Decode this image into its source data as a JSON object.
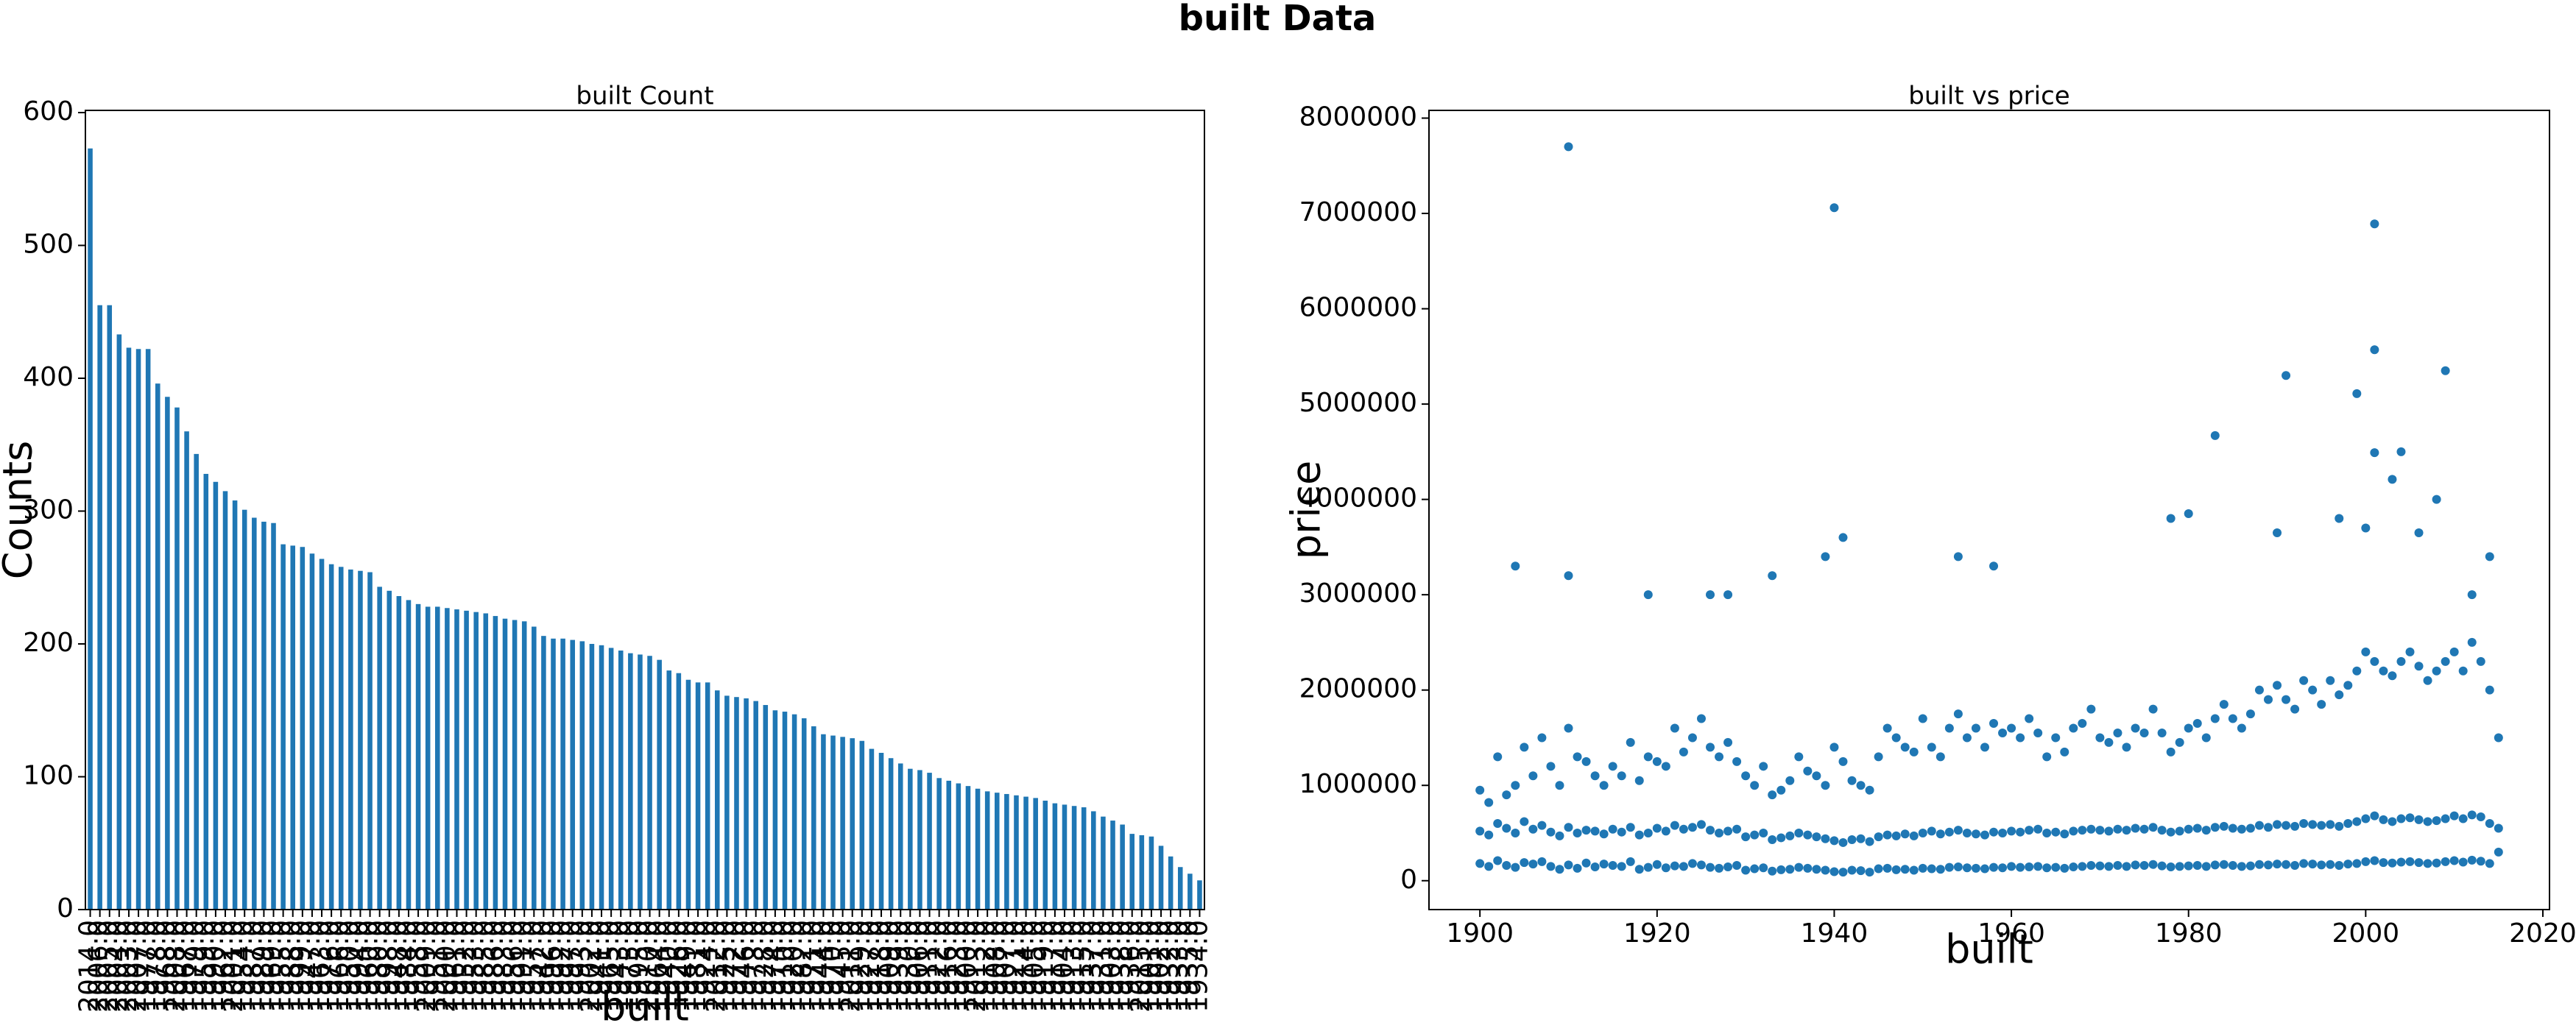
{
  "title": "built Data",
  "chart_data": [
    {
      "type": "bar",
      "title": "built Count",
      "xlabel": "built",
      "ylabel": "Counts",
      "color": "#1f77b4",
      "categories": [
        "2014.0",
        "2006.0",
        "2005.0",
        "2004.0",
        "2003.0",
        "2007.0",
        "1977.0",
        "1978.0",
        "1968.0",
        "2008.0",
        "1967.0",
        "1979.0",
        "1959.0",
        "1990.0",
        "1962.0",
        "2001.0",
        "1954.0",
        "1987.0",
        "1989.0",
        "1969.0",
        "1955.0",
        "1988.0",
        "1999.0",
        "1947.0",
        "1963.0",
        "1976.0",
        "1966.0",
        "1950.0",
        "1994.0",
        "1960.0",
        "1980.0",
        "1998.0",
        "1948.0",
        "1984.0",
        "1958.0",
        "2009.0",
        "1951.0",
        "2000.0",
        "1961.0",
        "1952.0",
        "1953.0",
        "1985.0",
        "1986.0",
        "1983.0",
        "1956.0",
        "1991.0",
        "1957.0",
        "1942.0",
        "1996.0",
        "1992.0",
        "1997.0",
        "1993.0",
        "2002.0",
        "1941.0",
        "1965.0",
        "1943.0",
        "1975.0",
        "1995.0",
        "2010.0",
        "1964.0",
        "1940.0",
        "1926.0",
        "1949.0",
        "1981.0",
        "1924.0",
        "2012.0",
        "1925.0",
        "1972.0",
        "1946.0",
        "1973.0",
        "1928.0",
        "1974.0",
        "1910.0",
        "1920.0",
        "1982.0",
        "1971.0",
        "1944.0",
        "1970.0",
        "1945.0",
        "2011.0",
        "1929.0",
        "1927.0",
        "1918.0",
        "1909.0",
        "1939.0",
        "1930.0",
        "1906.0",
        "1911.0",
        "1922.0",
        "1916.0",
        "1923.0",
        "1900.0",
        "2013.0",
        "1912.0",
        "1908.0",
        "1907.0",
        "1921.0",
        "1914.0",
        "1905.0",
        "1919.0",
        "1917.0",
        "1904.0",
        "1913.0",
        "1915.0",
        "1937.0",
        "1931.0",
        "1903.0",
        "1938.0",
        "1936.0",
        "2015.0",
        "1901.0",
        "1902.0",
        "1932.0",
        "1933.0",
        "1935.0",
        "1934.0"
      ],
      "values": [
        573,
        455,
        455,
        433,
        423,
        422,
        422,
        396,
        386,
        378,
        360,
        343,
        328,
        322,
        315,
        308,
        301,
        295,
        292,
        291,
        275,
        274,
        273,
        268,
        264,
        260,
        258,
        256,
        255,
        254,
        243,
        240,
        236,
        233,
        230,
        228,
        228,
        227,
        226,
        225,
        224,
        223,
        221,
        219,
        218,
        217,
        213,
        206,
        204,
        204,
        203,
        202,
        200,
        199,
        197,
        195,
        193,
        192,
        191,
        188,
        180,
        178,
        173,
        171,
        171,
        165,
        161,
        160,
        159,
        157,
        154,
        150,
        149,
        147,
        144,
        138,
        132,
        131,
        130,
        129,
        127,
        121,
        118,
        114,
        110,
        106,
        105,
        103,
        99,
        97,
        95,
        93,
        91,
        89,
        88,
        87,
        86,
        85,
        84,
        82,
        80,
        79,
        78,
        77,
        74,
        70,
        67,
        64,
        57,
        56,
        55,
        48,
        40,
        32,
        27,
        22
      ],
      "ylim": [
        0,
        601.65
      ],
      "yticks": [
        0,
        100,
        200,
        300,
        400,
        500,
        600
      ]
    },
    {
      "type": "scatter",
      "title": "built vs price",
      "xlabel": "built",
      "ylabel": "price",
      "color": "#1f77b4",
      "x": [
        1900,
        1901,
        1902,
        1903,
        1904,
        1905,
        1906,
        1907,
        1908,
        1909,
        1910,
        1911,
        1912,
        1913,
        1914,
        1915,
        1916,
        1917,
        1918,
        1919,
        1920,
        1921,
        1922,
        1923,
        1924,
        1925,
        1926,
        1927,
        1928,
        1929,
        1930,
        1931,
        1932,
        1933,
        1934,
        1935,
        1936,
        1937,
        1938,
        1939,
        1940,
        1941,
        1942,
        1943,
        1944,
        1945,
        1946,
        1947,
        1948,
        1949,
        1950,
        1951,
        1952,
        1953,
        1954,
        1955,
        1956,
        1957,
        1958,
        1959,
        1960,
        1961,
        1962,
        1963,
        1964,
        1965,
        1966,
        1967,
        1968,
        1969,
        1970,
        1971,
        1972,
        1973,
        1974,
        1975,
        1976,
        1977,
        1978,
        1979,
        1980,
        1981,
        1982,
        1983,
        1984,
        1985,
        1986,
        1987,
        1988,
        1989,
        1990,
        1991,
        1992,
        1993,
        1994,
        1995,
        1996,
        1997,
        1998,
        1999,
        2000,
        2001,
        2002,
        2003,
        2004,
        2005,
        2006,
        2007,
        2008,
        2009,
        2010,
        2011,
        2012,
        2013,
        2014,
        2015,
        1900,
        1901,
        1902,
        1903,
        1904,
        1905,
        1906,
        1907,
        1908,
        1909,
        1910,
        1911,
        1912,
        1913,
        1914,
        1915,
        1916,
        1917,
        1918,
        1919,
        1920,
        1921,
        1922,
        1923,
        1924,
        1925,
        1926,
        1927,
        1928,
        1929,
        1930,
        1931,
        1932,
        1933,
        1934,
        1935,
        1936,
        1937,
        1938,
        1939,
        1940,
        1941,
        1942,
        1943,
        1944,
        1945,
        1946,
        1947,
        1948,
        1949,
        1950,
        1951,
        1952,
        1953,
        1954,
        1955,
        1956,
        1957,
        1958,
        1959,
        1960,
        1961,
        1962,
        1963,
        1964,
        1965,
        1966,
        1967,
        1968,
        1969,
        1970,
        1971,
        1972,
        1973,
        1974,
        1975,
        1976,
        1977,
        1978,
        1979,
        1980,
        1981,
        1982,
        1983,
        1984,
        1985,
        1986,
        1987,
        1988,
        1989,
        1990,
        1991,
        1992,
        1993,
        1994,
        1995,
        1996,
        1997,
        1998,
        1999,
        2000,
        2001,
        2002,
        2003,
        2004,
        2005,
        2006,
        2007,
        2008,
        2009,
        2010,
        2011,
        2012,
        2013,
        2014,
        2015,
        1900,
        1901,
        1902,
        1903,
        1904,
        1905,
        1906,
        1907,
        1908,
        1909,
        1910,
        1911,
        1912,
        1913,
        1914,
        1915,
        1916,
        1917,
        1918,
        1919,
        1920,
        1921,
        1922,
        1923,
        1924,
        1925,
        1926,
        1927,
        1928,
        1929,
        1930,
        1931,
        1932,
        1933,
        1934,
        1935,
        1936,
        1937,
        1938,
        1939,
        1940,
        1941,
        1942,
        1943,
        1944,
        1945,
        1946,
        1947,
        1948,
        1949,
        1950,
        1951,
        1952,
        1953,
        1954,
        1955,
        1956,
        1957,
        1958,
        1959,
        1960,
        1961,
        1962,
        1963,
        1964,
        1965,
        1966,
        1967,
        1968,
        1969,
        1970,
        1971,
        1972,
        1973,
        1974,
        1975,
        1976,
        1977,
        1978,
        1979,
        1980,
        1981,
        1982,
        1983,
        1984,
        1985,
        1986,
        1987,
        1988,
        1989,
        1990,
        1991,
        1992,
        1993,
        1994,
        1995,
        1996,
        1997,
        1998,
        1999,
        2000,
        2001,
        2002,
        2003,
        2004,
        2005,
        2006,
        2007,
        2008,
        2009,
        2010,
        2011,
        2012,
        2013,
        2014,
        2015,
        1910,
        1940,
        2001,
        2001,
        1991,
        1999,
        2009,
        1983,
        2001,
        2004,
        2003,
        2008,
        1941,
        1939,
        1904,
        1910,
        1933,
        1919,
        1978,
        1980,
        1990,
        1997,
        2000,
        2006,
        2014,
        1954,
        1958,
        1926,
        1928,
        2012
      ],
      "values": [
        180000,
        150000,
        210000,
        160000,
        140000,
        190000,
        175000,
        200000,
        150000,
        120000,
        165000,
        130000,
        185000,
        145000,
        175000,
        160000,
        150000,
        200000,
        120000,
        140000,
        170000,
        135000,
        155000,
        150000,
        180000,
        165000,
        140000,
        130000,
        145000,
        160000,
        110000,
        125000,
        135000,
        100000,
        115000,
        120000,
        140000,
        130000,
        120000,
        110000,
        95000,
        90000,
        110000,
        105000,
        90000,
        125000,
        130000,
        115000,
        120000,
        110000,
        130000,
        125000,
        120000,
        140000,
        145000,
        135000,
        130000,
        125000,
        140000,
        135000,
        150000,
        140000,
        145000,
        150000,
        135000,
        140000,
        130000,
        145000,
        150000,
        160000,
        155000,
        150000,
        160000,
        150000,
        165000,
        160000,
        170000,
        155000,
        145000,
        150000,
        155000,
        160000,
        150000,
        165000,
        170000,
        160000,
        150000,
        155000,
        170000,
        165000,
        175000,
        170000,
        160000,
        180000,
        175000,
        165000,
        170000,
        160000,
        175000,
        180000,
        200000,
        210000,
        190000,
        185000,
        195000,
        200000,
        190000,
        180000,
        185000,
        200000,
        210000,
        195000,
        215000,
        205000,
        180000,
        300000,
        520000,
        480000,
        600000,
        550000,
        500000,
        620000,
        540000,
        580000,
        510000,
        470000,
        560000,
        500000,
        530000,
        520000,
        490000,
        540000,
        510000,
        560000,
        480000,
        500000,
        550000,
        520000,
        580000,
        540000,
        560000,
        590000,
        530000,
        500000,
        520000,
        540000,
        460000,
        480000,
        500000,
        430000,
        450000,
        470000,
        500000,
        480000,
        460000,
        440000,
        420000,
        400000,
        430000,
        440000,
        410000,
        460000,
        480000,
        470000,
        490000,
        470000,
        500000,
        520000,
        490000,
        510000,
        530000,
        500000,
        490000,
        480000,
        510000,
        500000,
        520000,
        510000,
        530000,
        540000,
        500000,
        510000,
        490000,
        520000,
        530000,
        540000,
        530000,
        520000,
        540000,
        530000,
        550000,
        540000,
        560000,
        530000,
        510000,
        520000,
        540000,
        550000,
        530000,
        560000,
        570000,
        550000,
        540000,
        550000,
        580000,
        560000,
        590000,
        580000,
        570000,
        600000,
        590000,
        580000,
        590000,
        570000,
        600000,
        620000,
        650000,
        680000,
        640000,
        620000,
        650000,
        660000,
        640000,
        620000,
        630000,
        650000,
        680000,
        650000,
        690000,
        670000,
        600000,
        550000,
        950000,
        820000,
        1300000,
        900000,
        1000000,
        1400000,
        1100000,
        1500000,
        1200000,
        1000000,
        1600000,
        1300000,
        1250000,
        1100000,
        1000000,
        1200000,
        1100000,
        1450000,
        1050000,
        1300000,
        1250000,
        1200000,
        1600000,
        1350000,
        1500000,
        1700000,
        1400000,
        1300000,
        1450000,
        1250000,
        1100000,
        1000000,
        1200000,
        900000,
        950000,
        1050000,
        1300000,
        1150000,
        1100000,
        1000000,
        1400000,
        1250000,
        1050000,
        1000000,
        950000,
        1300000,
        1600000,
        1500000,
        1400000,
        1350000,
        1700000,
        1400000,
        1300000,
        1600000,
        1750000,
        1500000,
        1600000,
        1400000,
        1650000,
        1550000,
        1600000,
        1500000,
        1700000,
        1550000,
        1300000,
        1500000,
        1350000,
        1600000,
        1650000,
        1800000,
        1500000,
        1450000,
        1550000,
        1400000,
        1600000,
        1550000,
        1800000,
        1550000,
        1350000,
        1450000,
        1600000,
        1650000,
        1500000,
        1700000,
        1850000,
        1700000,
        1600000,
        1750000,
        2000000,
        1900000,
        2050000,
        1900000,
        1800000,
        2100000,
        2000000,
        1850000,
        2100000,
        1950000,
        2050000,
        2200000,
        2400000,
        2300000,
        2200000,
        2150000,
        2300000,
        2400000,
        2250000,
        2100000,
        2200000,
        2300000,
        2400000,
        2200000,
        2500000,
        2300000,
        2000000,
        1500000,
        7700000,
        7060000,
        6890000,
        5570000,
        5300000,
        5110000,
        5350000,
        4670000,
        4490000,
        4500000,
        4210000,
        4000000,
        3600000,
        3400000,
        3300000,
        3200000,
        3200000,
        3000000,
        3800000,
        3850000,
        3650000,
        3800000,
        3700000,
        3650000,
        3400000,
        3400000,
        3300000,
        3000000,
        3000000,
        3000000
      ],
      "xlim": [
        1894.25,
        2020.75
      ],
      "xticks": [
        1900,
        1920,
        1940,
        1960,
        1980,
        2000,
        2020
      ],
      "ylim": [
        -303000,
        8081000
      ],
      "yticks": [
        0,
        1000000,
        2000000,
        3000000,
        4000000,
        5000000,
        6000000,
        7000000,
        8000000
      ]
    }
  ]
}
